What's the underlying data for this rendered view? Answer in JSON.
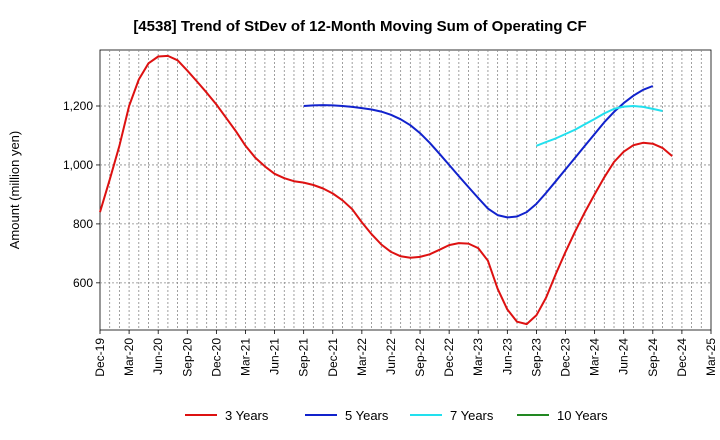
{
  "chart_data": {
    "type": "line",
    "title": "[4538]  Trend of StDev of 12-Month Moving Sum of Operating CF",
    "xlabel": "",
    "ylabel": "Amount (million yen)",
    "ylim": [
      440,
      1390
    ],
    "y_ticks": [
      600,
      800,
      1000,
      1200
    ],
    "y_tick_labels": [
      "600",
      "800",
      "1,000",
      "1,200"
    ],
    "x_start": "Dec-19",
    "x_end": "Mar-25",
    "x_tick_labels": [
      "Dec-19",
      "Mar-20",
      "Jun-20",
      "Sep-20",
      "Dec-20",
      "Mar-21",
      "Jun-21",
      "Sep-21",
      "Dec-21",
      "Mar-22",
      "Jun-22",
      "Sep-22",
      "Dec-22",
      "Mar-23",
      "Jun-23",
      "Sep-23",
      "Dec-23",
      "Mar-24",
      "Jun-24",
      "Sep-24",
      "Dec-24",
      "Mar-25"
    ],
    "grid": true,
    "legend_position": "bottom",
    "series": [
      {
        "name": "3 Years",
        "color": "#dd1111",
        "start_month_index": 0,
        "values": [
          840,
          950,
          1065,
          1200,
          1290,
          1345,
          1368,
          1370,
          1355,
          1320,
          1283,
          1245,
          1205,
          1160,
          1115,
          1065,
          1025,
          995,
          970,
          955,
          945,
          940,
          932,
          920,
          903,
          880,
          850,
          805,
          765,
          730,
          705,
          690,
          685,
          688,
          697,
          712,
          728,
          735,
          733,
          718,
          675,
          580,
          510,
          468,
          460,
          490,
          550,
          630,
          705,
          775,
          840,
          900,
          958,
          1010,
          1045,
          1067,
          1075,
          1072,
          1058,
          1030
        ]
      },
      {
        "name": "5 Years",
        "color": "#1122cc",
        "start_month_index": 21,
        "values": [
          1200,
          1202,
          1203,
          1202,
          1200,
          1197,
          1193,
          1188,
          1181,
          1170,
          1155,
          1135,
          1108,
          1075,
          1038,
          1000,
          962,
          925,
          888,
          852,
          830,
          822,
          825,
          840,
          868,
          905,
          945,
          985,
          1025,
          1065,
          1105,
          1145,
          1180,
          1210,
          1235,
          1255,
          1268
        ]
      },
      {
        "name": "7 Years",
        "color": "#22e0ee",
        "start_month_index": 45,
        "values": [
          1065,
          1078,
          1090,
          1105,
          1120,
          1138,
          1156,
          1175,
          1190,
          1198,
          1200,
          1197,
          1190,
          1183
        ]
      },
      {
        "name": "10 Years",
        "color": "#228822",
        "start_month_index": 0,
        "values": []
      }
    ]
  }
}
